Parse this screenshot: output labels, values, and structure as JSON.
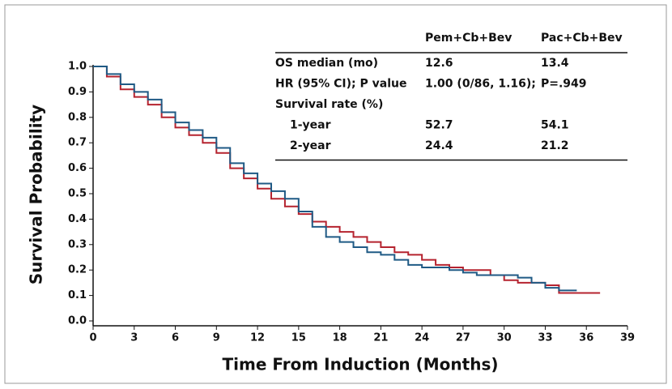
{
  "chart_data": {
    "type": "step",
    "xlabel": "Time From Induction (Months)",
    "ylabel": "Survival Probability",
    "xlim": [
      0,
      39
    ],
    "xticks": [
      0,
      3,
      6,
      9,
      12,
      15,
      18,
      21,
      24,
      27,
      30,
      33,
      36,
      39
    ],
    "ylim": [
      0,
      1
    ],
    "yticks": [
      {
        "value": 0,
        "label": "0.0"
      },
      {
        "value": 0.1,
        "label": "0.1"
      },
      {
        "value": 0.2,
        "label": "0.2"
      },
      {
        "value": 0.3,
        "label": "0.3"
      },
      {
        "value": 0.4,
        "label": "0.4"
      },
      {
        "value": 0.5,
        "label": "0.5"
      },
      {
        "value": 0.6,
        "label": "0.6"
      },
      {
        "value": 0.7,
        "label": "0.7"
      },
      {
        "value": 0.8,
        "label": "0.8"
      },
      {
        "value": 0.9,
        "label": "0.9"
      },
      {
        "value": 1,
        "label": "1.0"
      }
    ],
    "series": [
      {
        "name": "Pem+Cb+Bev",
        "color": "#b5232f",
        "x": [
          0,
          1,
          2,
          3,
          4,
          5,
          6,
          7,
          8,
          9,
          10,
          11,
          12,
          13,
          14,
          15,
          16,
          17,
          18,
          19,
          20,
          21,
          22,
          23,
          24,
          25,
          26,
          27,
          28,
          29,
          30,
          31,
          32,
          33,
          34,
          37
        ],
        "values": [
          1.0,
          0.96,
          0.91,
          0.88,
          0.85,
          0.8,
          0.76,
          0.73,
          0.7,
          0.66,
          0.6,
          0.56,
          0.52,
          0.48,
          0.45,
          0.42,
          0.39,
          0.37,
          0.35,
          0.33,
          0.31,
          0.29,
          0.27,
          0.26,
          0.24,
          0.22,
          0.21,
          0.2,
          0.2,
          0.18,
          0.16,
          0.15,
          0.15,
          0.14,
          0.11,
          0.11
        ]
      },
      {
        "name": "Pac+Cb+Bev",
        "color": "#1f5a85",
        "x": [
          0,
          1,
          2,
          3,
          4,
          5,
          6,
          7,
          8,
          9,
          10,
          11,
          12,
          13,
          14,
          15,
          16,
          17,
          18,
          19,
          20,
          21,
          22,
          23,
          24,
          26,
          27,
          28,
          31,
          32,
          33,
          34,
          35.3
        ],
        "values": [
          1.0,
          0.97,
          0.93,
          0.9,
          0.87,
          0.82,
          0.78,
          0.75,
          0.72,
          0.68,
          0.62,
          0.58,
          0.54,
          0.51,
          0.48,
          0.43,
          0.37,
          0.33,
          0.31,
          0.29,
          0.27,
          0.26,
          0.24,
          0.22,
          0.21,
          0.2,
          0.19,
          0.18,
          0.17,
          0.15,
          0.13,
          0.12,
          0.12
        ]
      }
    ],
    "table": {
      "rows": [
        {
          "label": "OS median (mo)",
          "values": [
            12.6,
            13.4
          ]
        },
        {
          "label": "HR (95% CI); P value",
          "values": [
            "1.00 (0/86, 1.16);",
            "P=.949"
          ]
        },
        {
          "label": "Survival rate (%)",
          "rows": [
            {
              "label": "1-year",
              "values": [
                52.7,
                54.1
              ]
            },
            {
              "label": "2-year",
              "values": [
                24.4,
                21.2
              ]
            }
          ]
        }
      ]
    }
  }
}
